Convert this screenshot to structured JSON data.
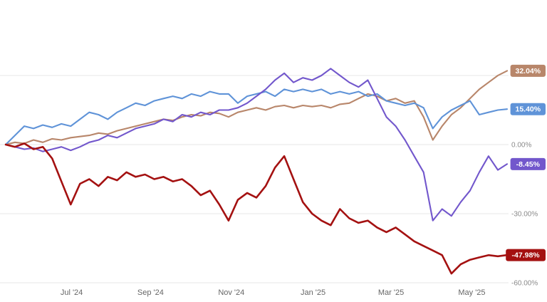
{
  "chart_data": {
    "type": "line",
    "title": "",
    "description": "Comparative percent-return line chart of four instruments from mid-2024 to mid-2025",
    "x_range": [
      0,
      54
    ],
    "x_tick_labels": [
      "Jul '24",
      "Sep '24",
      "Nov '24",
      "Jan '25",
      "Mar '25",
      "May '25"
    ],
    "x_tick_positions": [
      7.1,
      15.6,
      24.3,
      33.1,
      41.5,
      50.2
    ],
    "ylim": [
      -62,
      40
    ],
    "y_gridlines": [
      30,
      0,
      -30,
      -60
    ],
    "y_tick_labels": [
      {
        "value": 0,
        "label": "0.00%"
      },
      {
        "value": -30,
        "label": "-30.00%"
      },
      {
        "value": -60,
        "label": "-60.00%"
      }
    ],
    "grid": "horizontal",
    "legend": "none",
    "series": [
      {
        "name": "tan-series",
        "color": "#b8866a",
        "final_label": "32.04%",
        "values": [
          0,
          1,
          0.5,
          2,
          1,
          2.5,
          2,
          3,
          3.5,
          4,
          5,
          4.5,
          6,
          7,
          8,
          9,
          10,
          11,
          10.5,
          12,
          13,
          12.5,
          14,
          13.5,
          12,
          14,
          15,
          16,
          15,
          16.5,
          17,
          16,
          17,
          16.5,
          17,
          16,
          17.5,
          18,
          20,
          22,
          21,
          19,
          20,
          18,
          19,
          12,
          2,
          8,
          13,
          16,
          20,
          24,
          27,
          30,
          32.04
        ]
      },
      {
        "name": "blue-series",
        "color": "#5f93d8",
        "final_label": "15.40%",
        "values": [
          0,
          4,
          8,
          7,
          8.5,
          7.5,
          9,
          8,
          11,
          14,
          13,
          11,
          14,
          16,
          18,
          17,
          19,
          20,
          21,
          20,
          22,
          21,
          23,
          22,
          22,
          18,
          21,
          22,
          23,
          21,
          24,
          23,
          24,
          23,
          24,
          22,
          23,
          22,
          23,
          21,
          22,
          19,
          18,
          17,
          18,
          16,
          7,
          12,
          15,
          17,
          19,
          13,
          14,
          15,
          15.4
        ]
      },
      {
        "name": "purple-series",
        "color": "#7257cc",
        "final_label": "-8.45%",
        "values": [
          0,
          -1,
          -2,
          -1.5,
          -3,
          -2,
          -1,
          -2.5,
          -1,
          1,
          2,
          4,
          3,
          5,
          7,
          8,
          9,
          11,
          10,
          13,
          12,
          14,
          13,
          15,
          15,
          16,
          18,
          21,
          24,
          28,
          31,
          27,
          29,
          28,
          30,
          33,
          30,
          27,
          25,
          28,
          20,
          12,
          8,
          2,
          -5,
          -12,
          -33,
          -28,
          -31,
          -25,
          -20,
          -12,
          -5,
          -11,
          -8.45
        ]
      },
      {
        "name": "red-series",
        "color": "#a41111",
        "final_label": "-47.98%",
        "values": [
          0,
          -1,
          0.5,
          -2,
          -1,
          -6,
          -16,
          -26,
          -17,
          -15,
          -18,
          -14,
          -15.5,
          -12,
          -14,
          -13,
          -15,
          -14,
          -16,
          -15,
          -18,
          -22,
          -20,
          -26,
          -33,
          -24,
          -21,
          -23,
          -18,
          -10,
          -5,
          -15,
          -25,
          -30,
          -33,
          -35,
          -28,
          -32,
          -34,
          -33,
          -36,
          -38,
          -36,
          -39,
          -42,
          -44,
          -46,
          -48,
          -56,
          -52,
          -50,
          -49,
          -48,
          -48.5,
          -47.98
        ]
      }
    ],
    "colors": {
      "background": "#ffffff",
      "gridline": "#e7e7e7",
      "x_tick_text": "#666666",
      "y_tick_text": "#8a8a8a",
      "badge_text": "#ffffff"
    }
  }
}
